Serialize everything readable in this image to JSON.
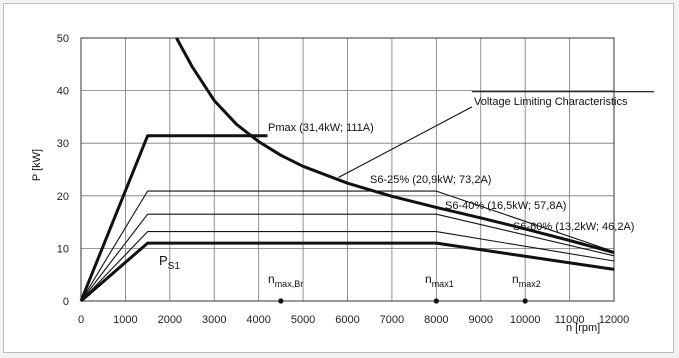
{
  "chart_data": {
    "type": "line",
    "xlabel": "n [rpm]",
    "ylabel": "P [kW]",
    "xlim": [
      0,
      12000
    ],
    "ylim": [
      0,
      50
    ],
    "x_ticks": [
      0,
      1000,
      2000,
      3000,
      4000,
      5000,
      6000,
      7000,
      8000,
      9000,
      10000,
      11000,
      12000
    ],
    "y_ticks": [
      0,
      10,
      20,
      30,
      40,
      50
    ],
    "grid": true,
    "series": [
      {
        "name": "",
        "x": [
          0,
          1500,
          4200
        ],
        "y": [
          0,
          31.4,
          31.4
        ],
        "weight": "bold"
      },
      {
        "name": "",
        "x": [
          0,
          1500,
          8000,
          12000
        ],
        "y": [
          0,
          20.9,
          20.9,
          9.4
        ],
        "weight": "thin"
      },
      {
        "name": "",
        "x": [
          0,
          1500,
          8000,
          12000
        ],
        "y": [
          0,
          16.5,
          16.5,
          8.6
        ],
        "weight": "thin"
      },
      {
        "name": "",
        "x": [
          0,
          1500,
          8000,
          12000
        ],
        "y": [
          0,
          13.2,
          13.2,
          7.6
        ],
        "weight": "thin"
      },
      {
        "name": "",
        "x": [
          0,
          1500,
          8000,
          12000
        ],
        "y": [
          0,
          11.0,
          11.0,
          6.0
        ],
        "weight": "bold"
      },
      {
        "name": "",
        "x": [
          2150,
          2500,
          3000,
          3500,
          4000,
          4500,
          5000,
          6000,
          7000,
          8000,
          9000,
          10000,
          11000,
          12000
        ],
        "y": [
          50,
          44.6,
          38.1,
          33.6,
          30.3,
          27.7,
          25.6,
          22.4,
          19.9,
          17.8,
          15.8,
          13.7,
          11.5,
          9.2
        ],
        "weight": "bold"
      },
      {
        "name": "",
        "x": [
          5800,
          8800
        ],
        "y": [
          23.5,
          36.9
        ],
        "weight": "thin"
      },
      {
        "name": "",
        "x": [
          8800,
          12900
        ],
        "y": [
          39.8,
          39.8
        ],
        "weight": "thin"
      }
    ],
    "markers": [
      {
        "x": 4500,
        "y": 0
      },
      {
        "x": 8000,
        "y": 0
      },
      {
        "x": 10000,
        "y": 0
      }
    ],
    "annotations": {
      "voltage": "Voltage Limiting Characteristics",
      "pmax": "Pmax (31,4kW; 111A)",
      "s6_25": "S6-25% (20,9kW; 73,2A)",
      "s6_40": "S6-40% (16,5kW; 57,8A)",
      "s6_60": "S6-60% (13,2kW; 46,2A)",
      "ps1_main": "P",
      "ps1_sub": "S1",
      "nmaxbr_main": "n",
      "nmaxbr_sub": "max,Br",
      "nmax1_main": "n",
      "nmax1_sub": "max1",
      "nmax2_main": "n",
      "nmax2_sub": "max2"
    }
  }
}
